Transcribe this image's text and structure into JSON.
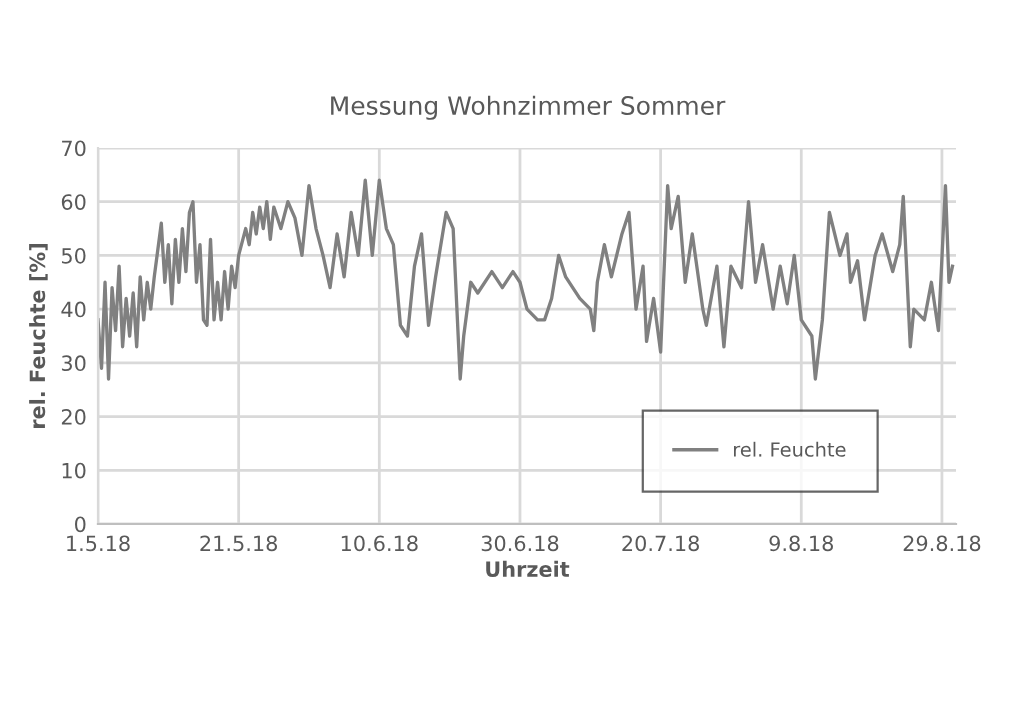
{
  "chart_data": {
    "type": "line",
    "title": "Messung Wohnzimmer Sommer",
    "xlabel": "Uhrzeit",
    "ylabel": "rel. Feuchte [%]",
    "xlim": [
      "2018-05-01",
      "2018-08-31"
    ],
    "xticks": [
      {
        "value": "2018-05-01",
        "label": "1.5.18"
      },
      {
        "value": "2018-05-21",
        "label": "21.5.18"
      },
      {
        "value": "2018-06-10",
        "label": "10.6.18"
      },
      {
        "value": "2018-06-30",
        "label": "30.6.18"
      },
      {
        "value": "2018-07-20",
        "label": "20.7.18"
      },
      {
        "value": "2018-08-09",
        "label": "9.8.18"
      },
      {
        "value": "2018-08-29",
        "label": "29.8.18"
      }
    ],
    "ylim": [
      0,
      70
    ],
    "yticks": [
      0,
      10,
      20,
      30,
      40,
      50,
      60,
      70
    ],
    "grid": true,
    "legend": "bottom right",
    "marker": "none",
    "line_style": "solid",
    "series": [
      {
        "name": "rel. Feuchte",
        "color": "#808080",
        "x": [
          "2018-05-01T00:00",
          "2018-05-01T12:00",
          "2018-05-02T00:00",
          "2018-05-02T12:00",
          "2018-05-03T00:00",
          "2018-05-03T12:00",
          "2018-05-04T00:00",
          "2018-05-04T12:00",
          "2018-05-05T00:00",
          "2018-05-05T12:00",
          "2018-05-06T00:00",
          "2018-05-06T12:00",
          "2018-05-07T00:00",
          "2018-05-07T12:00",
          "2018-05-08T00:00",
          "2018-05-08T12:00",
          "2018-05-09T00:00",
          "2018-05-10T00:00",
          "2018-05-10T12:00",
          "2018-05-11T00:00",
          "2018-05-11T12:00",
          "2018-05-12T00:00",
          "2018-05-12T12:00",
          "2018-05-13T00:00",
          "2018-05-13T12:00",
          "2018-05-14T00:00",
          "2018-05-14T12:00",
          "2018-05-15T00:00",
          "2018-05-15T12:00",
          "2018-05-16T00:00",
          "2018-05-16T12:00",
          "2018-05-17T00:00",
          "2018-05-17T12:00",
          "2018-05-18T00:00",
          "2018-05-18T12:00",
          "2018-05-19T00:00",
          "2018-05-19T12:00",
          "2018-05-20T00:00",
          "2018-05-20T12:00",
          "2018-05-21T00:00",
          "2018-05-22T00:00",
          "2018-05-22T12:00",
          "2018-05-23T00:00",
          "2018-05-23T12:00",
          "2018-05-24T00:00",
          "2018-05-24T12:00",
          "2018-05-25T00:00",
          "2018-05-25T12:00",
          "2018-05-26T00:00",
          "2018-05-27T00:00",
          "2018-05-28T00:00",
          "2018-05-29T00:00",
          "2018-05-30T00:00",
          "2018-05-31T00:00",
          "2018-06-01T00:00",
          "2018-06-02T00:00",
          "2018-06-03T00:00",
          "2018-06-04T00:00",
          "2018-06-05T00:00",
          "2018-06-06T00:00",
          "2018-06-07T00:00",
          "2018-06-08T00:00",
          "2018-06-09T00:00",
          "2018-06-10T00:00",
          "2018-06-11T00:00",
          "2018-06-12T00:00",
          "2018-06-13T00:00",
          "2018-06-14T00:00",
          "2018-06-15T00:00",
          "2018-06-16T00:00",
          "2018-06-17T00:00",
          "2018-06-18T00:00",
          "2018-06-19T12:00",
          "2018-06-20T12:00",
          "2018-06-21T12:00",
          "2018-06-22T00:00",
          "2018-06-23T00:00",
          "2018-06-24T00:00",
          "2018-06-26T00:00",
          "2018-06-27T12:00",
          "2018-06-29T00:00",
          "2018-06-30T00:00",
          "2018-07-01T00:00",
          "2018-07-02T12:00",
          "2018-07-03T12:00",
          "2018-07-04T12:00",
          "2018-07-05T12:00",
          "2018-07-06T12:00",
          "2018-07-08T12:00",
          "2018-07-10T00:00",
          "2018-07-10T12:00",
          "2018-07-11T00:00",
          "2018-07-12T00:00",
          "2018-07-13T00:00",
          "2018-07-14T12:00",
          "2018-07-15T12:00",
          "2018-07-16T12:00",
          "2018-07-17T12:00",
          "2018-07-18T00:00",
          "2018-07-19T00:00",
          "2018-07-20T00:00",
          "2018-07-21T00:00",
          "2018-07-21T12:00",
          "2018-07-22T12:00",
          "2018-07-23T12:00",
          "2018-07-24T12:00",
          "2018-07-26T00:00",
          "2018-07-26T12:00",
          "2018-07-28T00:00",
          "2018-07-29T00:00",
          "2018-07-30T00:00",
          "2018-07-31T12:00",
          "2018-08-01T12:00",
          "2018-08-02T12:00",
          "2018-08-03T12:00",
          "2018-08-05T00:00",
          "2018-08-06T00:00",
          "2018-08-07T00:00",
          "2018-08-08T00:00",
          "2018-08-09T00:00",
          "2018-08-10T12:00",
          "2018-08-11T00:00",
          "2018-08-12T00:00",
          "2018-08-13T00:00",
          "2018-08-14T12:00",
          "2018-08-15T12:00",
          "2018-08-16T00:00",
          "2018-08-17T00:00",
          "2018-08-18T00:00",
          "2018-08-19T12:00",
          "2018-08-20T12:00",
          "2018-08-22T00:00",
          "2018-08-23T00:00",
          "2018-08-23T12:00",
          "2018-08-24T12:00",
          "2018-08-25T00:00",
          "2018-08-26T12:00",
          "2018-08-27T12:00",
          "2018-08-28T12:00",
          "2018-08-29T12:00",
          "2018-08-30T00:00",
          "2018-08-30T12:00"
        ],
        "values": [
          38,
          29,
          45,
          27,
          44,
          36,
          48,
          33,
          42,
          35,
          43,
          33,
          46,
          38,
          45,
          40,
          46,
          56,
          45,
          52,
          41,
          53,
          45,
          55,
          47,
          58,
          60,
          45,
          52,
          38,
          37,
          53,
          38,
          45,
          38,
          47,
          40,
          48,
          44,
          50,
          55,
          52,
          58,
          54,
          59,
          55,
          60,
          53,
          59,
          55,
          60,
          57,
          50,
          63,
          55,
          50,
          44,
          54,
          46,
          58,
          50,
          64,
          50,
          64,
          55,
          52,
          37,
          35,
          48,
          54,
          37,
          46,
          58,
          55,
          27,
          35,
          45,
          43,
          47,
          44,
          47,
          45,
          40,
          38,
          38,
          42,
          50,
          46,
          42,
          40,
          36,
          45,
          52,
          46,
          54,
          58,
          40,
          48,
          34,
          42,
          32,
          63,
          55,
          61,
          45,
          54,
          40,
          37,
          48,
          33,
          48,
          44,
          60,
          45,
          52,
          40,
          48,
          41,
          50,
          38,
          35,
          27,
          38,
          58,
          50,
          54,
          45,
          49,
          38,
          50,
          54,
          47,
          52,
          61,
          33,
          40,
          38,
          45,
          36,
          63,
          45,
          48
        ]
      }
    ]
  }
}
